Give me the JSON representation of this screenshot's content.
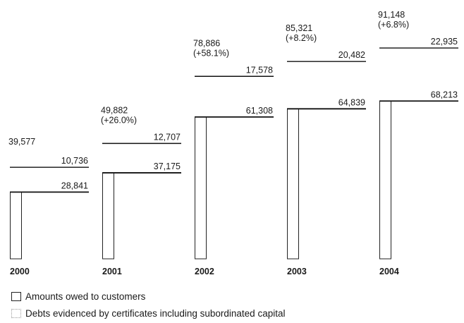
{
  "chart_data": {
    "type": "bar",
    "stacked": true,
    "categories": [
      "2000",
      "2001",
      "2002",
      "2003",
      "2004"
    ],
    "series": [
      {
        "name": "Amounts owed to customers",
        "values": [
          28841,
          37175,
          61308,
          64839,
          68213
        ],
        "labels": [
          "28,841",
          "37,175",
          "61,308",
          "64,839",
          "68,213"
        ],
        "color": "#ffffff"
      },
      {
        "name": "Debts evidenced by certificates including subordinated capital",
        "values": [
          10736,
          12707,
          17578,
          20482,
          22935
        ],
        "labels": [
          "10,736",
          "12,707",
          "17,578",
          "20,482",
          "22,935"
        ],
        "color": "#ffffff"
      }
    ],
    "totals": [
      {
        "value": 39577,
        "label": "39,577",
        "change": ""
      },
      {
        "value": 49882,
        "label": "49,882",
        "change": "(+26.0%)"
      },
      {
        "value": 78886,
        "label": "78,886",
        "change": "(+58.1%)"
      },
      {
        "value": 85321,
        "label": "85,321",
        "change": "(+8.2%)"
      },
      {
        "value": 91148,
        "label": "91,148",
        "change": "(+6.8%)"
      }
    ],
    "legend_position": "bottom-left",
    "grid": false
  }
}
